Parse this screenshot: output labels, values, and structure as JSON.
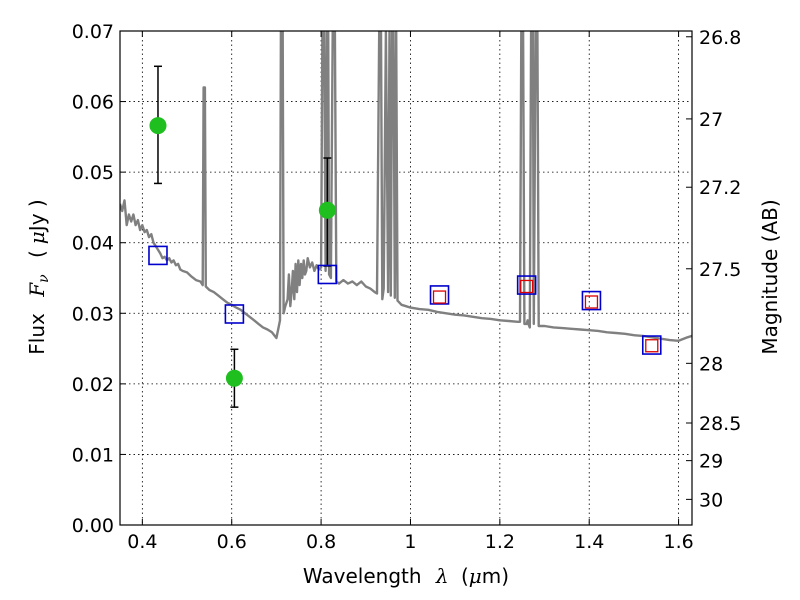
{
  "chart_data": {
    "type": "scatter",
    "x_axis": {
      "label_prefix": "Wavelength",
      "label_symbol": "λ",
      "label_unit_open": "(",
      "label_unit_mu": "μ",
      "label_unit_rest": "m)",
      "range": [
        0.35,
        1.63
      ],
      "ticks": [
        0.4,
        0.6,
        0.8,
        1.0,
        1.2,
        1.4,
        1.6
      ],
      "tick_labels": [
        "0.4",
        "0.6",
        "0.8",
        "1",
        "1.2",
        "1.4",
        "1.6"
      ]
    },
    "y_axis": {
      "label_prefix": "Flux",
      "label_symbol": "F",
      "label_subscript": "ν",
      "label_unit_open": "(",
      "label_unit_mu": "μ",
      "label_unit_rest": "Jy )",
      "range": [
        0.0,
        0.07
      ],
      "ticks": [
        0.0,
        0.01,
        0.02,
        0.03,
        0.04,
        0.05,
        0.06,
        0.07
      ],
      "tick_labels": [
        "0.00",
        "0.01",
        "0.02",
        "0.03",
        "0.04",
        "0.05",
        "0.06",
        "0.07"
      ]
    },
    "y2_axis": {
      "label": "Magnitude (AB)",
      "ticks": [
        26.8,
        27.0,
        27.2,
        27.5,
        28.0,
        28.5,
        29.0,
        30.0
      ],
      "tick_labels": [
        "26.8",
        "27",
        "27.2",
        "27.5",
        "28",
        "28.5",
        "29",
        "30"
      ]
    },
    "grid": true,
    "series": [
      {
        "kind": "line",
        "color": "#808080",
        "points": [
          [
            0.35,
            0.0455
          ],
          [
            0.355,
            0.0445
          ],
          [
            0.36,
            0.046
          ],
          [
            0.365,
            0.0425
          ],
          [
            0.37,
            0.044
          ],
          [
            0.375,
            0.043
          ],
          [
            0.38,
            0.044
          ],
          [
            0.385,
            0.0425
          ],
          [
            0.39,
            0.0432
          ],
          [
            0.395,
            0.0418
          ],
          [
            0.4,
            0.0425
          ],
          [
            0.405,
            0.0415
          ],
          [
            0.41,
            0.0418
          ],
          [
            0.415,
            0.0408
          ],
          [
            0.42,
            0.0412
          ],
          [
            0.425,
            0.04
          ],
          [
            0.43,
            0.0395
          ],
          [
            0.435,
            0.039
          ],
          [
            0.44,
            0.0385
          ],
          [
            0.445,
            0.0378
          ],
          [
            0.45,
            0.038
          ],
          [
            0.455,
            0.0375
          ],
          [
            0.46,
            0.0378
          ],
          [
            0.465,
            0.0372
          ],
          [
            0.47,
            0.0375
          ],
          [
            0.475,
            0.0368
          ],
          [
            0.48,
            0.037
          ],
          [
            0.485,
            0.0362
          ],
          [
            0.49,
            0.036
          ],
          [
            0.5,
            0.0358
          ],
          [
            0.51,
            0.0352
          ],
          [
            0.52,
            0.0347
          ],
          [
            0.53,
            0.0345
          ],
          [
            0.535,
            0.034
          ],
          [
            0.537,
            0.062
          ],
          [
            0.54,
            0.062
          ],
          [
            0.542,
            0.0338
          ],
          [
            0.55,
            0.0333
          ],
          [
            0.56,
            0.033
          ],
          [
            0.57,
            0.0325
          ],
          [
            0.58,
            0.032
          ],
          [
            0.59,
            0.0315
          ],
          [
            0.6,
            0.0312
          ],
          [
            0.61,
            0.0308
          ],
          [
            0.62,
            0.0305
          ],
          [
            0.63,
            0.03
          ],
          [
            0.64,
            0.0295
          ],
          [
            0.65,
            0.029
          ],
          [
            0.66,
            0.0285
          ],
          [
            0.67,
            0.028
          ],
          [
            0.68,
            0.0277
          ],
          [
            0.69,
            0.0273
          ],
          [
            0.7,
            0.0265
          ],
          [
            0.705,
            0.028
          ],
          [
            0.708,
            0.029
          ],
          [
            0.71,
            0.07
          ],
          [
            0.714,
            0.07
          ],
          [
            0.716,
            0.03
          ],
          [
            0.72,
            0.031
          ],
          [
            0.725,
            0.032
          ],
          [
            0.728,
            0.0355
          ],
          [
            0.731,
            0.031
          ],
          [
            0.734,
            0.033
          ],
          [
            0.737,
            0.036
          ],
          [
            0.74,
            0.032
          ],
          [
            0.743,
            0.037
          ],
          [
            0.746,
            0.033
          ],
          [
            0.749,
            0.0375
          ],
          [
            0.752,
            0.034
          ],
          [
            0.755,
            0.037
          ],
          [
            0.758,
            0.035
          ],
          [
            0.761,
            0.0375
          ],
          [
            0.764,
            0.0355
          ],
          [
            0.767,
            0.036
          ],
          [
            0.77,
            0.0378
          ],
          [
            0.775,
            0.0365
          ],
          [
            0.78,
            0.0372
          ],
          [
            0.785,
            0.036
          ],
          [
            0.79,
            0.0368
          ],
          [
            0.795,
            0.0362
          ],
          [
            0.8,
            0.0365
          ],
          [
            0.803,
            0.07
          ],
          [
            0.807,
            0.07
          ],
          [
            0.81,
            0.036
          ],
          [
            0.813,
            0.07
          ],
          [
            0.816,
            0.07
          ],
          [
            0.818,
            0.0355
          ],
          [
            0.822,
            0.035
          ],
          [
            0.826,
            0.07
          ],
          [
            0.831,
            0.07
          ],
          [
            0.834,
            0.0345
          ],
          [
            0.84,
            0.0342
          ],
          [
            0.85,
            0.0347
          ],
          [
            0.86,
            0.0342
          ],
          [
            0.87,
            0.0345
          ],
          [
            0.88,
            0.034
          ],
          [
            0.89,
            0.0345
          ],
          [
            0.9,
            0.0338
          ],
          [
            0.91,
            0.0335
          ],
          [
            0.92,
            0.033
          ],
          [
            0.925,
            0.0328
          ],
          [
            0.93,
            0.07
          ],
          [
            0.934,
            0.07
          ],
          [
            0.937,
            0.032
          ],
          [
            0.94,
            0.0335
          ],
          [
            0.945,
            0.07
          ],
          [
            0.95,
            0.033
          ],
          [
            0.953,
            0.07
          ],
          [
            0.956,
            0.0325
          ],
          [
            0.959,
            0.07
          ],
          [
            0.962,
            0.07
          ],
          [
            0.965,
            0.0322
          ],
          [
            0.968,
            0.07
          ],
          [
            0.971,
            0.0318
          ],
          [
            0.98,
            0.0312
          ],
          [
            0.99,
            0.031
          ],
          [
            1.0,
            0.0308
          ],
          [
            1.02,
            0.0306
          ],
          [
            1.04,
            0.0305
          ],
          [
            1.06,
            0.0302
          ],
          [
            1.08,
            0.03
          ],
          [
            1.1,
            0.0298
          ],
          [
            1.12,
            0.0297
          ],
          [
            1.14,
            0.0295
          ],
          [
            1.16,
            0.0293
          ],
          [
            1.18,
            0.0292
          ],
          [
            1.2,
            0.029
          ],
          [
            1.22,
            0.0289
          ],
          [
            1.24,
            0.0288
          ],
          [
            1.245,
            0.0288
          ],
          [
            1.248,
            0.07
          ],
          [
            1.252,
            0.07
          ],
          [
            1.255,
            0.0285
          ],
          [
            1.26,
            0.0285
          ],
          [
            1.262,
            0.029
          ],
          [
            1.264,
            0.0285
          ],
          [
            1.267,
            0.028
          ],
          [
            1.27,
            0.07
          ],
          [
            1.274,
            0.07
          ],
          [
            1.276,
            0.0285
          ],
          [
            1.28,
            0.07
          ],
          [
            1.284,
            0.07
          ],
          [
            1.287,
            0.0282
          ],
          [
            1.3,
            0.0282
          ],
          [
            1.32,
            0.028
          ],
          [
            1.34,
            0.0279
          ],
          [
            1.36,
            0.0278
          ],
          [
            1.38,
            0.0277
          ],
          [
            1.4,
            0.0276
          ],
          [
            1.42,
            0.0275
          ],
          [
            1.44,
            0.0273
          ],
          [
            1.46,
            0.0272
          ],
          [
            1.48,
            0.0271
          ],
          [
            1.5,
            0.0269
          ],
          [
            1.52,
            0.0268
          ],
          [
            1.54,
            0.0266
          ],
          [
            1.56,
            0.0264
          ],
          [
            1.58,
            0.0262
          ],
          [
            1.6,
            0.0261
          ],
          [
            1.62,
            0.0266
          ],
          [
            1.63,
            0.0268
          ]
        ]
      },
      {
        "kind": "points",
        "marker": "circle",
        "color": "#1fbf1f",
        "error_bar_color": "#000000",
        "points": [
          {
            "x": 0.435,
            "y": 0.0566,
            "yerr_low": 0.0484,
            "yerr_high": 0.065
          },
          {
            "x": 0.606,
            "y": 0.0208,
            "yerr_low": 0.0167,
            "yerr_high": 0.0249
          },
          {
            "x": 0.814,
            "y": 0.0446,
            "yerr_low": 0.0367,
            "yerr_high": 0.052
          }
        ]
      },
      {
        "kind": "points",
        "marker": "square",
        "color": "#0000cc",
        "points": [
          {
            "x": 0.435,
            "y": 0.0382
          },
          {
            "x": 0.606,
            "y": 0.0299
          },
          {
            "x": 0.814,
            "y": 0.0355
          },
          {
            "x": 1.065,
            "y": 0.0326
          },
          {
            "x": 1.26,
            "y": 0.034
          },
          {
            "x": 1.405,
            "y": 0.0318
          },
          {
            "x": 1.54,
            "y": 0.0255
          }
        ]
      },
      {
        "kind": "points",
        "marker": "square-small",
        "color": "#dd0000",
        "points": [
          {
            "x": 1.065,
            "y": 0.0323
          },
          {
            "x": 1.26,
            "y": 0.0338
          },
          {
            "x": 1.405,
            "y": 0.0316
          },
          {
            "x": 1.54,
            "y": 0.0254
          }
        ]
      }
    ]
  }
}
